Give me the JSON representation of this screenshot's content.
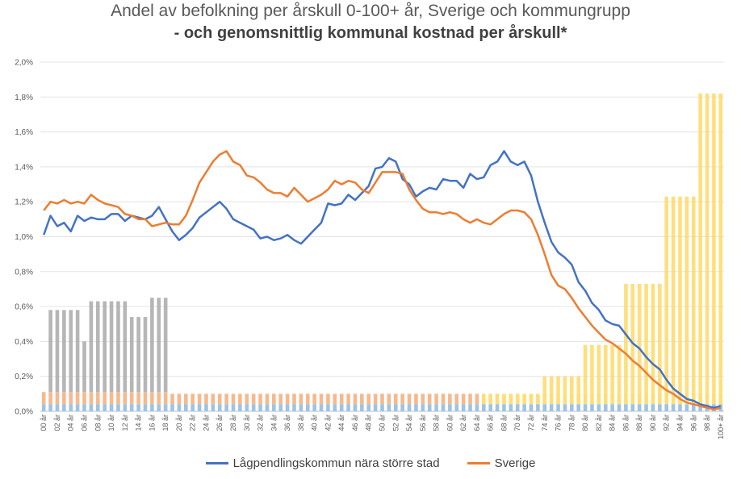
{
  "chart_data": {
    "type": "line",
    "title": "Andel av befolkning per årskull 0-100+ år, Sverige och kommungrupp",
    "subtitle": "- och genomsnittlig kommunal kostnad per årskull*",
    "xlabel": "",
    "ylabel": "",
    "ylim": [
      0,
      2.0
    ],
    "y_ticks": [
      "0,0%",
      "0,2%",
      "0,4%",
      "0,6%",
      "0,8%",
      "1,0%",
      "1,2%",
      "1,4%",
      "1,6%",
      "1,8%",
      "2,0%"
    ],
    "x_tick_labels": [
      "00 år",
      "02 år",
      "04 år",
      "06 år",
      "08 år",
      "10 år",
      "12 år",
      "14 år",
      "16 år",
      "18 år",
      "20 år",
      "22 år",
      "24 år",
      "26 år",
      "28 år",
      "30 år",
      "32 år",
      "34 år",
      "36 år",
      "38 år",
      "40 år",
      "42 år",
      "44 år",
      "46 år",
      "48 år",
      "50 år",
      "52 år",
      "54 år",
      "56 år",
      "58 år",
      "60 år",
      "62 år",
      "64 år",
      "66 år",
      "68 år",
      "70 år",
      "72 år",
      "74 år",
      "76 år",
      "78 år",
      "80 år",
      "82 år",
      "84 år",
      "86 år",
      "88 år",
      "90 år",
      "92 år",
      "94 år",
      "96 år",
      "98 år",
      "100+ år"
    ],
    "legend_position": "bottom",
    "grid": true,
    "series": [
      {
        "name": "Lågpendlingskommun nära större stad",
        "color": "#4472C4",
        "values": [
          1.01,
          1.12,
          1.06,
          1.08,
          1.03,
          1.12,
          1.09,
          1.11,
          1.1,
          1.1,
          1.13,
          1.13,
          1.09,
          1.12,
          1.11,
          1.1,
          1.12,
          1.17,
          1.1,
          1.03,
          0.98,
          1.01,
          1.05,
          1.11,
          1.14,
          1.17,
          1.2,
          1.16,
          1.1,
          1.08,
          1.06,
          1.04,
          0.99,
          1.0,
          0.98,
          0.99,
          1.01,
          0.98,
          0.96,
          1.0,
          1.04,
          1.08,
          1.19,
          1.18,
          1.19,
          1.24,
          1.21,
          1.25,
          1.29,
          1.39,
          1.4,
          1.45,
          1.43,
          1.33,
          1.3,
          1.23,
          1.26,
          1.28,
          1.27,
          1.33,
          1.32,
          1.32,
          1.28,
          1.36,
          1.33,
          1.34,
          1.41,
          1.43,
          1.49,
          1.43,
          1.41,
          1.43,
          1.35,
          1.2,
          1.08,
          0.97,
          0.91,
          0.88,
          0.84,
          0.74,
          0.69,
          0.62,
          0.58,
          0.52,
          0.5,
          0.49,
          0.44,
          0.39,
          0.36,
          0.31,
          0.27,
          0.24,
          0.18,
          0.13,
          0.1,
          0.07,
          0.06,
          0.04,
          0.03,
          0.02,
          0.03
        ]
      },
      {
        "name": "Sverige",
        "color": "#ED7D31",
        "values": [
          1.15,
          1.2,
          1.19,
          1.21,
          1.19,
          1.2,
          1.19,
          1.24,
          1.21,
          1.19,
          1.18,
          1.17,
          1.13,
          1.12,
          1.1,
          1.1,
          1.06,
          1.07,
          1.08,
          1.07,
          1.07,
          1.12,
          1.21,
          1.31,
          1.37,
          1.43,
          1.47,
          1.49,
          1.43,
          1.41,
          1.35,
          1.34,
          1.31,
          1.27,
          1.25,
          1.25,
          1.23,
          1.28,
          1.24,
          1.2,
          1.22,
          1.24,
          1.27,
          1.32,
          1.3,
          1.32,
          1.31,
          1.27,
          1.25,
          1.31,
          1.37,
          1.37,
          1.37,
          1.36,
          1.27,
          1.21,
          1.16,
          1.14,
          1.14,
          1.13,
          1.14,
          1.13,
          1.1,
          1.08,
          1.1,
          1.08,
          1.07,
          1.1,
          1.13,
          1.15,
          1.15,
          1.14,
          1.1,
          1.01,
          0.9,
          0.78,
          0.72,
          0.7,
          0.65,
          0.59,
          0.54,
          0.49,
          0.45,
          0.41,
          0.39,
          0.36,
          0.33,
          0.29,
          0.26,
          0.22,
          0.18,
          0.15,
          0.12,
          0.1,
          0.07,
          0.05,
          0.04,
          0.03,
          0.02,
          0.01,
          0.02
        ]
      }
    ],
    "background_bars": {
      "blue_base": 0.04,
      "bands": [
        {
          "from": 0,
          "to": 19,
          "colors": [
            "#A9A9A9",
            "#F4B183"
          ],
          "tops": [
            0.11,
            0.58,
            0.58,
            0.58,
            0.58,
            0.58,
            0.4,
            0.63,
            0.63,
            0.63,
            0.63,
            0.63,
            0.63,
            0.54,
            0.54,
            0.54,
            0.65,
            0.65,
            0.65,
            0.1
          ]
        },
        {
          "from": 20,
          "to": 64,
          "colors": [
            "#F4B183",
            "#F4B183"
          ],
          "tops": [
            0.1
          ]
        },
        {
          "from": 65,
          "to": 73,
          "colors": [
            "#FFD966",
            "#FFD966"
          ],
          "tops": [
            0.1
          ]
        },
        {
          "from": 74,
          "to": 100,
          "colors": [
            "#FFD966",
            "#FFD966"
          ],
          "tops": [
            0.2,
            0.2,
            0.2,
            0.2,
            0.2,
            0.2,
            0.38,
            0.38,
            0.38,
            0.38,
            0.38,
            0.38,
            0.73,
            0.73,
            0.73,
            0.73,
            0.73,
            0.73,
            1.23,
            1.23,
            1.23,
            1.23,
            1.23,
            1.82,
            1.82,
            1.82,
            1.82
          ]
        }
      ]
    }
  }
}
